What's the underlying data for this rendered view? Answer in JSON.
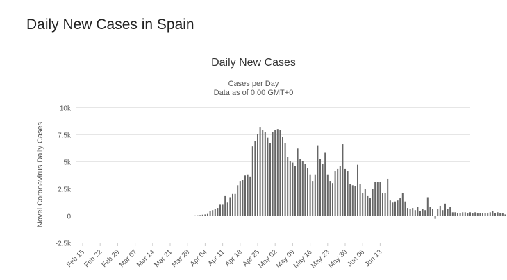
{
  "page": {
    "title": "Daily New Cases in Spain"
  },
  "chart_data": {
    "type": "bar",
    "title": "Daily New Cases",
    "subtitle_lines": [
      "Cases per Day",
      "Data as of 0:00 GMT+0"
    ],
    "xlabel": "",
    "ylabel": "Novel Coronavirus Daily Cases",
    "ylim": [
      -2500,
      10000
    ],
    "y_ticks": [
      10000,
      7500,
      5000,
      2500,
      0,
      -2500
    ],
    "y_tick_labels": [
      "10k",
      "7.5k",
      "5k",
      "2.5k",
      "0",
      "-2.5k"
    ],
    "grid": true,
    "legend": "none",
    "bar_color": "#666666",
    "x_tick_labels": [
      "Feb 15",
      "Feb 22",
      "Feb 29",
      "Mar 07",
      "Mar 14",
      "Mar 21",
      "Mar 28",
      "Apr 04",
      "Apr 11",
      "Apr 18",
      "Apr 25",
      "May 02",
      "May 09",
      "May 16",
      "May 23",
      "May 30",
      "Jun 06",
      "Jun 13"
    ],
    "categories_start": "Feb 15",
    "values": [
      0,
      0,
      0,
      0,
      0,
      0,
      0,
      0,
      0,
      0,
      0,
      0,
      0,
      0,
      0,
      0,
      0,
      0,
      0,
      0,
      0,
      0,
      0,
      0,
      0,
      0,
      0,
      0,
      0,
      0,
      0,
      0,
      0,
      0,
      0,
      0,
      0,
      0,
      0,
      0,
      0,
      0,
      0,
      0,
      0,
      10,
      20,
      40,
      80,
      100,
      150,
      400,
      500,
      600,
      700,
      1000,
      1000,
      1800,
      1200,
      1700,
      2000,
      2000,
      2800,
      3200,
      3300,
      3700,
      3800,
      3600,
      6400,
      6900,
      7500,
      8200,
      7900,
      7700,
      7200,
      6700,
      7700,
      7900,
      8000,
      7900,
      7300,
      6700,
      5400,
      5000,
      4900,
      4600,
      6200,
      5200,
      5000,
      4800,
      4400,
      3800,
      3200,
      3800,
      6500,
      5200,
      4800,
      5800,
      3800,
      3200,
      3000,
      4100,
      4300,
      4600,
      6600,
      4300,
      4100,
      2900,
      2800,
      2700,
      4700,
      2900,
      2100,
      2500,
      1800,
      1600,
      2500,
      3100,
      3100,
      3100,
      2100,
      2100,
      3400,
      1400,
      1200,
      1300,
      1400,
      1600,
      2100,
      1300,
      700,
      600,
      700,
      500,
      800,
      400,
      600,
      500,
      1700,
      800,
      600,
      -300,
      600,
      900,
      500,
      1100,
      600,
      800,
      300,
      300,
      200,
      200,
      300,
      300,
      200,
      300,
      200,
      300,
      200,
      200,
      200,
      200,
      200,
      300,
      400,
      200,
      300,
      200,
      200,
      100
    ]
  }
}
